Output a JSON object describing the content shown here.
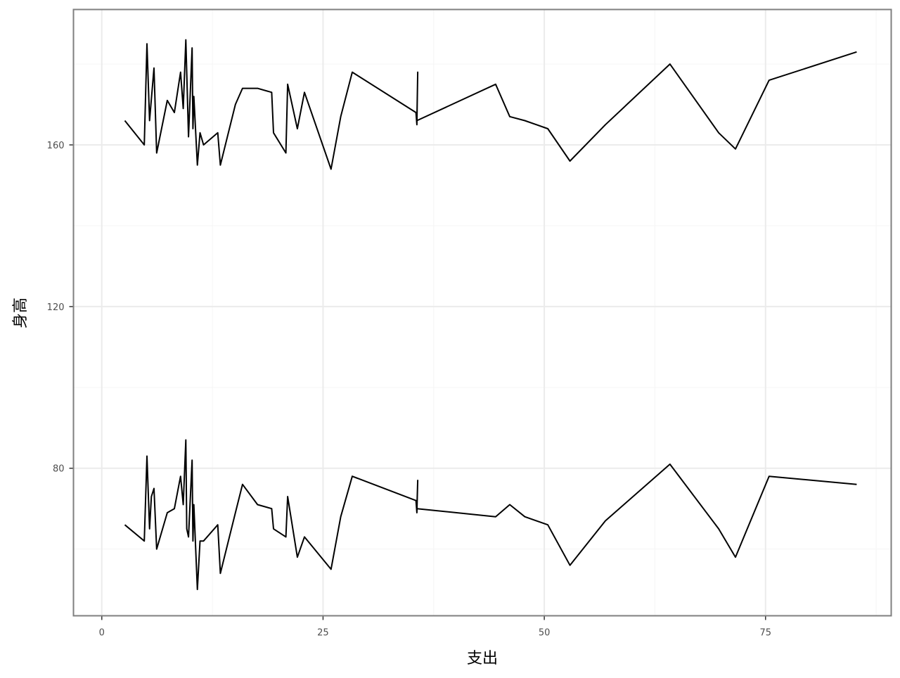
{
  "chart_data": {
    "type": "line",
    "title": "",
    "xlabel": "支出",
    "ylabel": "身高",
    "xlim": [
      -3.2,
      89.2
    ],
    "ylim": [
      43.5,
      193.5
    ],
    "x_ticks": [
      0,
      25,
      50,
      75
    ],
    "y_ticks": [
      80,
      120,
      160
    ],
    "x_minor": [
      12.5,
      37.5,
      62.5,
      87.5
    ],
    "y_minor": [
      60,
      100,
      140,
      180
    ],
    "grid": true,
    "legend": "none",
    "colors": {
      "line": "#000000",
      "grid": "#ebebeb",
      "border": "#7f7f7f"
    },
    "series": [
      {
        "x": [
          2.6,
          4.8,
          5.1,
          5.4,
          5.9,
          6.2,
          7.4,
          8.2,
          8.9,
          9.2,
          9.5,
          9.8,
          10.2,
          10.3,
          10.4,
          10.8,
          11.1,
          11.5,
          13.1,
          13.4,
          15.1,
          15.9,
          17.6,
          19.2,
          19.4,
          20.8,
          21.0,
          22.1,
          22.9,
          25.9,
          27.0,
          28.3,
          35.5,
          35.6,
          35.7,
          35.6,
          44.5,
          46.1,
          47.8,
          50.4,
          52.9,
          56.9,
          64.2,
          69.7,
          71.6,
          75.4,
          85.3
        ],
        "y": [
          166,
          160,
          185,
          166,
          179,
          158,
          171,
          168,
          178,
          169,
          186,
          162,
          184,
          164,
          172,
          155,
          163,
          160,
          163,
          155,
          170,
          174,
          174,
          173,
          163,
          158,
          175,
          164,
          173,
          154,
          167,
          178,
          168,
          165,
          178,
          166,
          175,
          167,
          166,
          164,
          156,
          165,
          180,
          163,
          159,
          176,
          183
        ]
      },
      {
        "x": [
          2.6,
          4.8,
          5.1,
          5.4,
          5.6,
          5.9,
          6.2,
          7.4,
          8.2,
          8.9,
          9.2,
          9.5,
          9.6,
          9.8,
          10.2,
          10.3,
          10.4,
          10.8,
          11.1,
          11.5,
          13.1,
          13.4,
          15.1,
          15.9,
          17.6,
          19.2,
          19.4,
          20.8,
          21.0,
          22.1,
          22.9,
          25.9,
          27.0,
          28.3,
          35.5,
          35.6,
          35.7,
          35.6,
          44.5,
          46.1,
          47.8,
          50.4,
          52.9,
          56.9,
          64.2,
          69.7,
          71.6,
          75.4,
          85.3
        ],
        "y": [
          66,
          62,
          83,
          65,
          73,
          75,
          60,
          69,
          70,
          78,
          71,
          87,
          65,
          63,
          82,
          62,
          71,
          50,
          62,
          62,
          66,
          54,
          69,
          76,
          71,
          70,
          65,
          63,
          73,
          58,
          63,
          55,
          68,
          78,
          72,
          69,
          77,
          70,
          68,
          71,
          68,
          66,
          56,
          67,
          81,
          65,
          58,
          78,
          76
        ]
      }
    ]
  }
}
